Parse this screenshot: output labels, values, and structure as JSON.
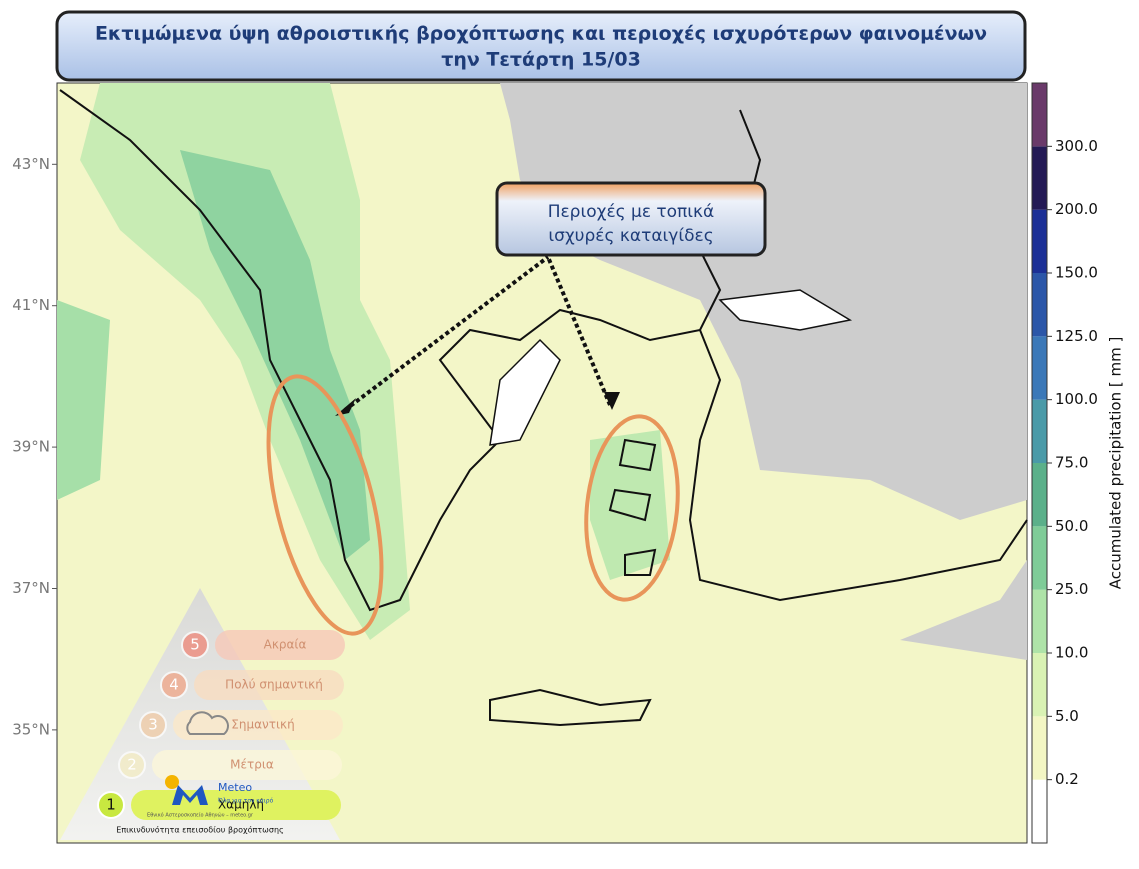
{
  "header": {
    "title_line1": "Εκτιμώμενα ύψη αθροιστικής βροχόπτωσης και περιοχές ισχυρότερων φαινομένων",
    "title_line2": "την Τετάρτη 15/03"
  },
  "annotation": {
    "line1": "Περιοχές με τοπικά",
    "line2": "ισχυρές καταιγίδες"
  },
  "map": {
    "ylim": [
      33.4,
      44.15
    ],
    "yticks": [
      {
        "value": 43,
        "label": "43°N"
      },
      {
        "value": 41,
        "label": "41°N"
      },
      {
        "value": 39,
        "label": "39°N"
      },
      {
        "value": 37,
        "label": "37°N"
      },
      {
        "value": 35,
        "label": "35°N"
      }
    ]
  },
  "colorbar": {
    "label": "Accumulated precipitation [ mm ]",
    "ticks": [
      {
        "value": 0.2,
        "label": "0.2"
      },
      {
        "value": 5,
        "label": "5.0"
      },
      {
        "value": 10,
        "label": "10.0"
      },
      {
        "value": 25,
        "label": "25.0"
      },
      {
        "value": 50,
        "label": "50.0"
      },
      {
        "value": 75,
        "label": "75.0"
      },
      {
        "value": 100,
        "label": "100.0"
      },
      {
        "value": 125,
        "label": "125.0"
      },
      {
        "value": 150,
        "label": "150.0"
      },
      {
        "value": 200,
        "label": "200.0"
      },
      {
        "value": 300,
        "label": "300.0"
      }
    ],
    "colors": [
      "#ffffff",
      "#f3f6c4",
      "#d9f2b4",
      "#aee3a8",
      "#7fcc98",
      "#5bb08a",
      "#4a9aa8",
      "#3b78b8",
      "#2b56a8",
      "#1b2f96",
      "#241a55",
      "#6a3a6a"
    ]
  },
  "legend": {
    "title": "Επικινδυνότητα επεισοδίου βροχόπτωσης",
    "levels": [
      {
        "number": "5",
        "label": "Ακραία"
      },
      {
        "number": "4",
        "label": "Πολύ σημαντική"
      },
      {
        "number": "3",
        "label": "Σημαντική"
      },
      {
        "number": "2",
        "label": "Μέτρια"
      },
      {
        "number": "1",
        "label": "Χαμηλή"
      }
    ]
  },
  "logo": {
    "name": "Meteo",
    "slogan": "Όλα για τον καιρό",
    "org": "Εθνικό Αστεροσκοπείο Αθηνών – meteo.gr"
  }
}
